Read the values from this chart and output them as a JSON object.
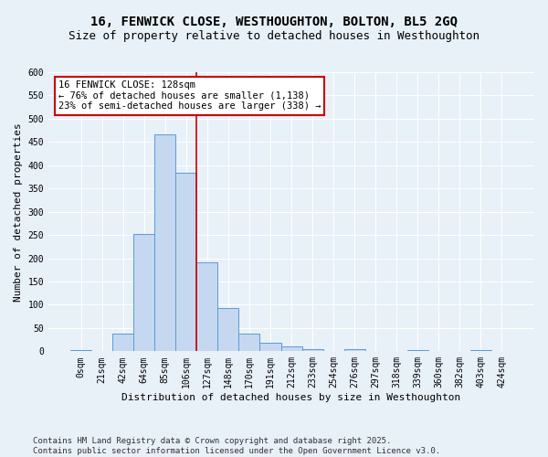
{
  "title_line1": "16, FENWICK CLOSE, WESTHOUGHTON, BOLTON, BL5 2GQ",
  "title_line2": "Size of property relative to detached houses in Westhoughton",
  "xlabel": "Distribution of detached houses by size in Westhoughton",
  "ylabel": "Number of detached properties",
  "bar_labels": [
    "0sqm",
    "21sqm",
    "42sqm",
    "64sqm",
    "85sqm",
    "106sqm",
    "127sqm",
    "148sqm",
    "170sqm",
    "191sqm",
    "212sqm",
    "233sqm",
    "254sqm",
    "276sqm",
    "297sqm",
    "318sqm",
    "339sqm",
    "360sqm",
    "382sqm",
    "403sqm",
    "424sqm"
  ],
  "bar_values": [
    2,
    0,
    38,
    253,
    467,
    384,
    191,
    93,
    38,
    18,
    10,
    4,
    0,
    4,
    0,
    0,
    2,
    0,
    0,
    2,
    0
  ],
  "bar_color": "#c5d8f0",
  "bar_edge_color": "#5b9bd5",
  "annotation_text": "16 FENWICK CLOSE: 128sqm\n← 76% of detached houses are smaller (1,138)\n23% of semi-detached houses are larger (338) →",
  "annotation_box_color": "#ffffff",
  "annotation_box_edge_color": "#cc0000",
  "vline_color": "#cc0000",
  "vline_x": 5.5,
  "ylim": [
    0,
    600
  ],
  "yticks": [
    0,
    50,
    100,
    150,
    200,
    250,
    300,
    350,
    400,
    450,
    500,
    550,
    600
  ],
  "footer_line1": "Contains HM Land Registry data © Crown copyright and database right 2025.",
  "footer_line2": "Contains public sector information licensed under the Open Government Licence v3.0.",
  "bg_color": "#e8f0f8",
  "plot_bg_color": "#e8f0f8",
  "grid_color": "#ffffff",
  "title_fontsize": 10,
  "subtitle_fontsize": 9,
  "axis_label_fontsize": 8,
  "tick_fontsize": 7,
  "annotation_fontsize": 7.5,
  "footer_fontsize": 6.5
}
